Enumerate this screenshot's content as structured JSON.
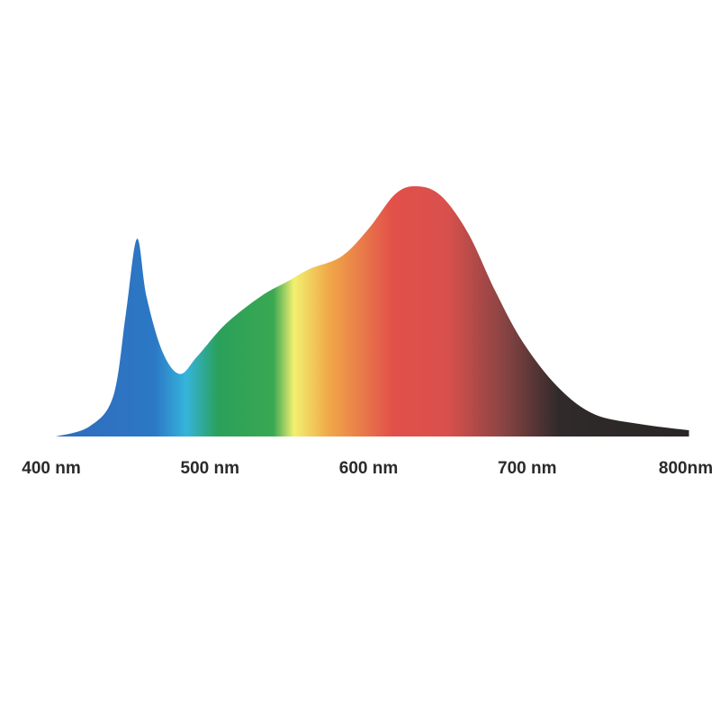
{
  "chart_data": {
    "type": "area",
    "title": "",
    "xlabel": "",
    "ylabel": "",
    "xlim": [
      400,
      800
    ],
    "ylim": [
      0,
      1
    ],
    "grid": false,
    "legend": "none",
    "x_ticks": [
      {
        "value": 400,
        "label": "400 nm"
      },
      {
        "value": 500,
        "label": "500 nm"
      },
      {
        "value": 600,
        "label": "600 nm"
      },
      {
        "value": 700,
        "label": "700 nm"
      },
      {
        "value": 800,
        "label": "800nm"
      }
    ],
    "series": [
      {
        "x": [
          403,
          424,
          439,
          447,
          454,
          460,
          470,
          481,
          492,
          510,
          532,
          549,
          563,
          583,
          600,
          617,
          631,
          646,
          663,
          680,
          697,
          719,
          742,
          771,
          802
        ],
        "y": [
          0,
          0.04,
          0.16,
          0.49,
          0.79,
          0.56,
          0.34,
          0.25,
          0.32,
          0.45,
          0.56,
          0.62,
          0.67,
          0.72,
          0.83,
          0.97,
          1.0,
          0.96,
          0.81,
          0.58,
          0.38,
          0.2,
          0.09,
          0.05,
          0.025
        ]
      }
    ],
    "fill_gradient": [
      {
        "nm": 420,
        "color": "#2f6fbf"
      },
      {
        "nm": 465,
        "color": "#2c78c4"
      },
      {
        "nm": 485,
        "color": "#35b4dc"
      },
      {
        "nm": 505,
        "color": "#2aa05a"
      },
      {
        "nm": 540,
        "color": "#3aa852"
      },
      {
        "nm": 553,
        "color": "#f2f070"
      },
      {
        "nm": 575,
        "color": "#f0a848"
      },
      {
        "nm": 615,
        "color": "#e2504a"
      },
      {
        "nm": 650,
        "color": "#d8504c"
      },
      {
        "nm": 685,
        "color": "#8a4444"
      },
      {
        "nm": 720,
        "color": "#302a2a"
      },
      {
        "nm": 800,
        "color": "#2a2626"
      }
    ]
  }
}
